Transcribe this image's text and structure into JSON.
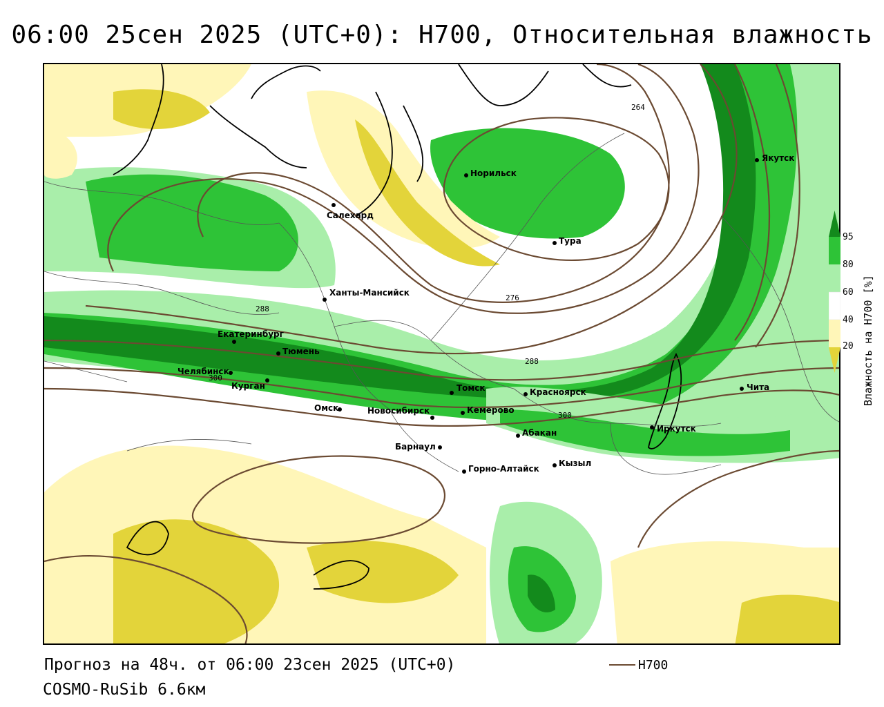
{
  "title": "06:00 25сен 2025 (UTC+0): H700, Относительная влажность",
  "footer": {
    "forecast": "Прогноз на 48ч. от 06:00 23сен 2025 (UTC+0)",
    "model": "COSMO-RuSib 6.6км"
  },
  "legend": {
    "contour_label": "H700",
    "contour_color": "#6b4a32"
  },
  "colorbar": {
    "title": "Влажность на H700 [%]",
    "ticks": [
      "95",
      "80",
      "60",
      "40",
      "20"
    ],
    "colors": {
      "very_wet": "#138a1c",
      "wet": "#2ec337",
      "moist": "#a9eeaa",
      "neutral": "#ffffff",
      "dry": "#fff6b8",
      "very_dry": "#e3d43a"
    }
  },
  "cities": [
    {
      "name": "Якутск"
    },
    {
      "name": "Норильск"
    },
    {
      "name": "Салехард"
    },
    {
      "name": "Тура"
    },
    {
      "name": "Ханты-Мансийск"
    },
    {
      "name": "Екатеринбург"
    },
    {
      "name": "Тюмень"
    },
    {
      "name": "Челябинск"
    },
    {
      "name": "Курган"
    },
    {
      "name": "Омск"
    },
    {
      "name": "Новосибирск"
    },
    {
      "name": "Томск"
    },
    {
      "name": "Красноярск"
    },
    {
      "name": "Кемерово"
    },
    {
      "name": "Барнаул"
    },
    {
      "name": "Абакан"
    },
    {
      "name": "Иркутск"
    },
    {
      "name": "Чита"
    },
    {
      "name": "Кызыл"
    },
    {
      "name": "Горно-Алтайск"
    }
  ],
  "contour_labels": [
    "264",
    "276",
    "288",
    "288",
    "300",
    "300"
  ]
}
